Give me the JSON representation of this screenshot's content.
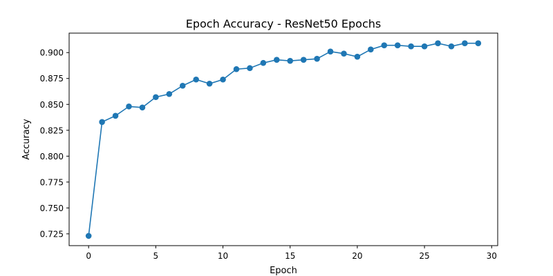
{
  "chart_data": {
    "type": "line",
    "title": "Epoch Accuracy - ResNet50 Epochs",
    "xlabel": "Epoch",
    "ylabel": "Accuracy",
    "xlim": [
      -1.45,
      30.45
    ],
    "ylim": [
      0.7136,
      0.9188
    ],
    "xticks": [
      0,
      5,
      10,
      15,
      20,
      25,
      30
    ],
    "yticks": [
      0.725,
      0.75,
      0.775,
      0.8,
      0.825,
      0.85,
      0.875,
      0.9
    ],
    "ytick_labels": [
      "0.725",
      "0.750",
      "0.775",
      "0.800",
      "0.825",
      "0.850",
      "0.875",
      "0.900"
    ],
    "grid": false,
    "color": "#1f77b4",
    "marker": "circle",
    "series": [
      {
        "x": [
          0,
          1,
          2,
          3,
          4,
          5,
          6,
          7,
          8,
          9,
          10,
          11,
          12,
          13,
          14,
          15,
          16,
          17,
          18,
          19,
          20,
          21,
          22,
          23,
          24,
          25,
          26,
          27,
          28,
          29
        ],
        "values": [
          0.723,
          0.833,
          0.839,
          0.848,
          0.847,
          0.857,
          0.86,
          0.868,
          0.874,
          0.87,
          0.874,
          0.884,
          0.885,
          0.89,
          0.893,
          0.892,
          0.893,
          0.894,
          0.901,
          0.899,
          0.896,
          0.903,
          0.907,
          0.907,
          0.906,
          0.906,
          0.909,
          0.906,
          0.909,
          0.909
        ]
      }
    ]
  }
}
